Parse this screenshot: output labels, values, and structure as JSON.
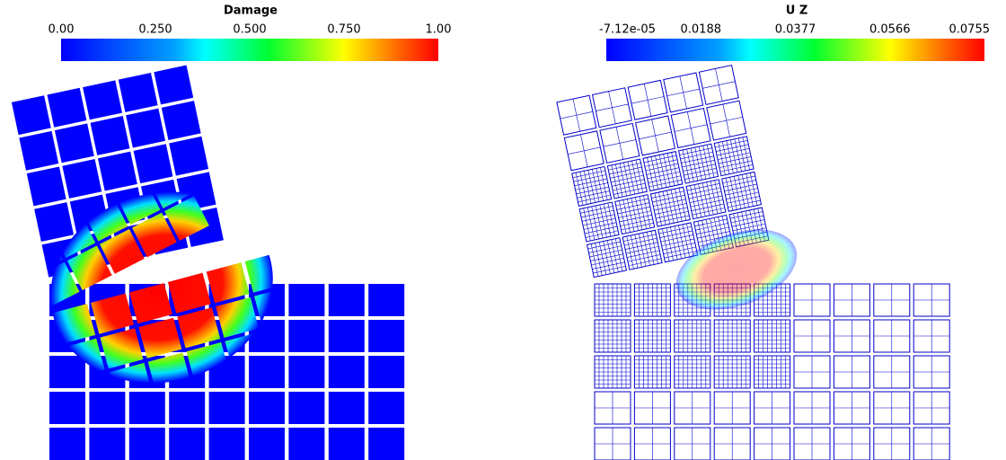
{
  "panels": [
    {
      "title": "Damage",
      "ticks": [
        "0.00",
        "0.250",
        "0.500",
        "0.750",
        "1.00"
      ]
    },
    {
      "title": "U Z",
      "ticks": [
        "-7.12e-05",
        "0.0188",
        "0.0377",
        "0.0566",
        "0.0755"
      ]
    }
  ]
}
